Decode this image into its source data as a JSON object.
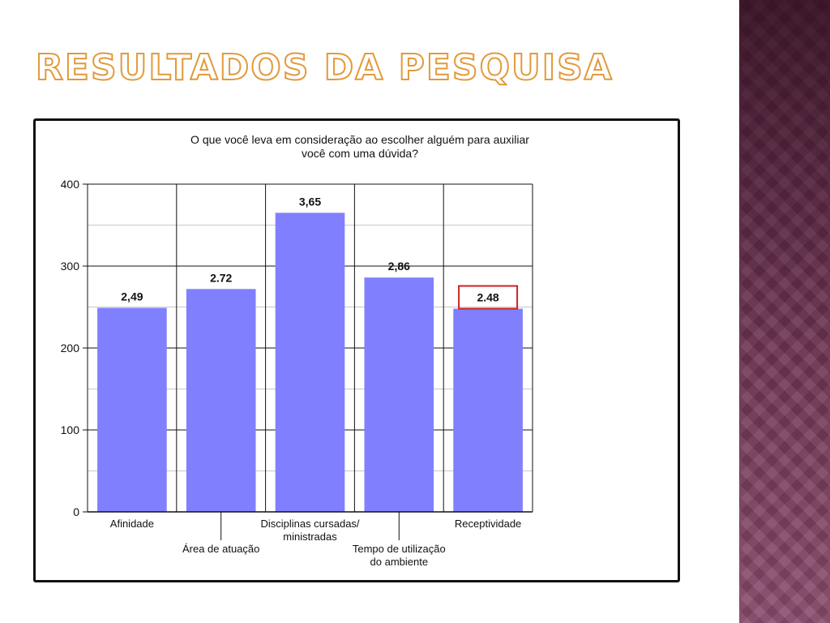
{
  "slide": {
    "title": "RESULTADOS DA PESQUISA"
  },
  "chart_data": {
    "type": "bar",
    "title": "O que você leva em consideração ao escolher alguém para auxiliar você com uma dúvida?",
    "title_lines": [
      "O que você leva em consideração ao escolher alguém para auxiliar",
      "você com uma dúvida?"
    ],
    "categories": [
      "Afinidade",
      "Área de atuação",
      "Disciplinas cursadas/ ministradas",
      "Tempo de utilização do ambiente",
      "Receptividade"
    ],
    "category_lines": [
      [
        "Afinidade"
      ],
      [
        "Área de atuação"
      ],
      [
        "Disciplinas cursadas/",
        "ministradas"
      ],
      [
        "Tempo de utilização",
        "do ambiente"
      ],
      [
        "Receptividade"
      ]
    ],
    "values": [
      249,
      272,
      365,
      286,
      248
    ],
    "data_labels": [
      "2,49",
      "2.72",
      "3,65",
      "2,86",
      "2.48"
    ],
    "highlighted_index": 4,
    "yticks": [
      0,
      100,
      200,
      300,
      400
    ],
    "ylim": [
      0,
      400
    ],
    "xlabel": "",
    "ylabel": "",
    "grid": true,
    "colors": {
      "bar": "#8080ff",
      "highlight_box": "#cc2222",
      "grid_major": "#111111",
      "grid_minor": "#c8c8c8"
    }
  }
}
